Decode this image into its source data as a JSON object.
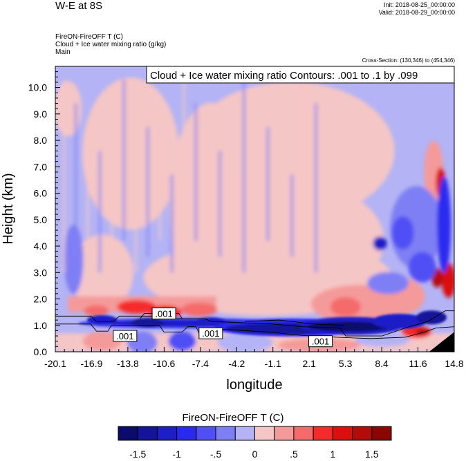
{
  "header": {
    "title": "W-E at 8S",
    "init": "Init: 2018-08-25_00:00:00",
    "valid": "Valid: 2018-08-29_00:00:00",
    "field1": "FireON-FireOFF T   (C)",
    "field2": "Cloud + Ice water mixing ratio   (g/kg)",
    "field3": "Main",
    "cross_section": "Cross-Section: (130,346) to (454,346)"
  },
  "chart_data": {
    "type": "heatmap",
    "contour_label": "Cloud + Ice water mixing ratio Contours: .001 to .1 by .099",
    "xlabel": "longitude",
    "ylabel": "Height (km)",
    "x_ticks": [
      "-20.1",
      "-16.9",
      "-13.8",
      "-10.6",
      "-7.4",
      "-4.2",
      "-1.1",
      "2.1",
      "5.3",
      "8.4",
      "11.6",
      "14.8"
    ],
    "y_ticks": [
      "0.0",
      "1.0",
      "2.0",
      "3.0",
      "4.0",
      "5.0",
      "6.0",
      "7.0",
      "8.0",
      "9.0",
      "10.0"
    ],
    "xlim": [
      -20.1,
      14.8
    ],
    "ylim": [
      0.0,
      10.8
    ],
    "contour_labels": [
      ".001",
      ".001",
      ".001",
      ".001"
    ],
    "colorbar": {
      "title": "FireON-FireOFF T  (C)",
      "tick_labels": [
        "-1.5",
        "-1",
        "-.5",
        "0",
        ".5",
        "1",
        "1.5"
      ],
      "colors": [
        "#0b0b6e",
        "#14149a",
        "#1e1ec8",
        "#2929f0",
        "#4f4ff5",
        "#7f7ff5",
        "#b3b3f5",
        "#f5c6c6",
        "#f59a9a",
        "#f56a6a",
        "#f52a2a",
        "#dc0f0f",
        "#b40a0a",
        "#8c0505"
      ]
    }
  }
}
